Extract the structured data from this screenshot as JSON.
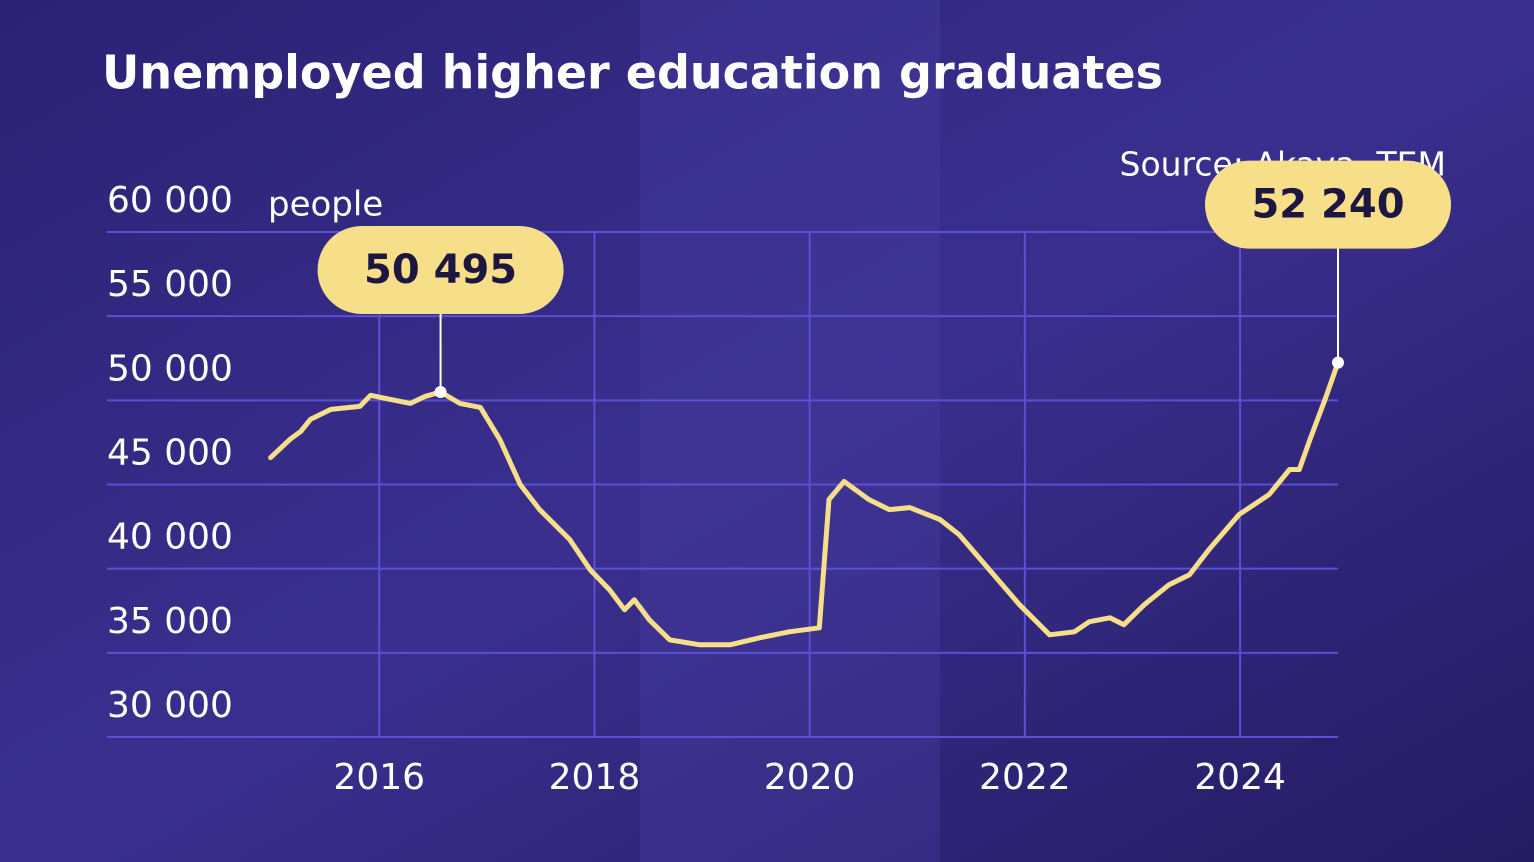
{
  "chart_data": {
    "type": "line",
    "title": "Unemployed higher education graduates",
    "source": "Source: Akava, TEM",
    "y_unit": "people",
    "x": [
      2014.99,
      2015.17,
      2015.27,
      2015.36,
      2015.55,
      2015.82,
      2015.92,
      2016.1,
      2016.29,
      2016.43,
      2016.57,
      2016.75,
      2016.94,
      2017.12,
      2017.31,
      2017.49,
      2017.77,
      2017.96,
      2018.14,
      2018.28,
      2018.37,
      2018.51,
      2018.7,
      2018.98,
      2019.26,
      2019.53,
      2019.81,
      2020.09,
      2020.18,
      2020.32,
      2020.55,
      2020.74,
      2020.93,
      2021.21,
      2021.39,
      2021.67,
      2021.95,
      2022.23,
      2022.46,
      2022.6,
      2022.79,
      2022.92,
      2023.11,
      2023.34,
      2023.53,
      2023.71,
      2023.99,
      2024.27,
      2024.46,
      2024.55,
      2024.65,
      2024.79,
      2024.91
    ],
    "series": [
      {
        "name": "Unemployed higher education graduates",
        "color": "#f7df8a",
        "values": [
          46600,
          47680,
          48150,
          48870,
          49460,
          49640,
          50300,
          50060,
          49820,
          50240,
          50495,
          49820,
          49580,
          47680,
          45000,
          43510,
          41730,
          39940,
          38750,
          37560,
          38150,
          36960,
          35770,
          35480,
          35480,
          35890,
          36250,
          36490,
          44110,
          45180,
          44110,
          43510,
          43630,
          42920,
          42020,
          39940,
          37860,
          36070,
          36250,
          36850,
          37080,
          36670,
          37860,
          39050,
          39640,
          41130,
          43210,
          44400,
          45890,
          45890,
          47680,
          50060,
          52240
        ]
      }
    ],
    "annotations": [
      {
        "label": "50 495",
        "x": 2016.57,
        "y": 50495
      },
      {
        "label": "52 240",
        "x": 2024.91,
        "y": 52240
      }
    ],
    "xlim": [
      2013.47,
      2024.91
    ],
    "xticks": [
      2016,
      2018,
      2020,
      2022,
      2024
    ],
    "ylim": [
      30000,
      60000
    ],
    "yticks": [
      {
        "value": 30000,
        "label": "30 000"
      },
      {
        "value": 35000,
        "label": "35 000"
      },
      {
        "value": 40000,
        "label": "40 000"
      },
      {
        "value": 45000,
        "label": "45 000"
      },
      {
        "value": 50000,
        "label": "50 000"
      },
      {
        "value": 55000,
        "label": "55 000"
      },
      {
        "value": 60000,
        "label": "60 000"
      }
    ],
    "grid": true
  }
}
